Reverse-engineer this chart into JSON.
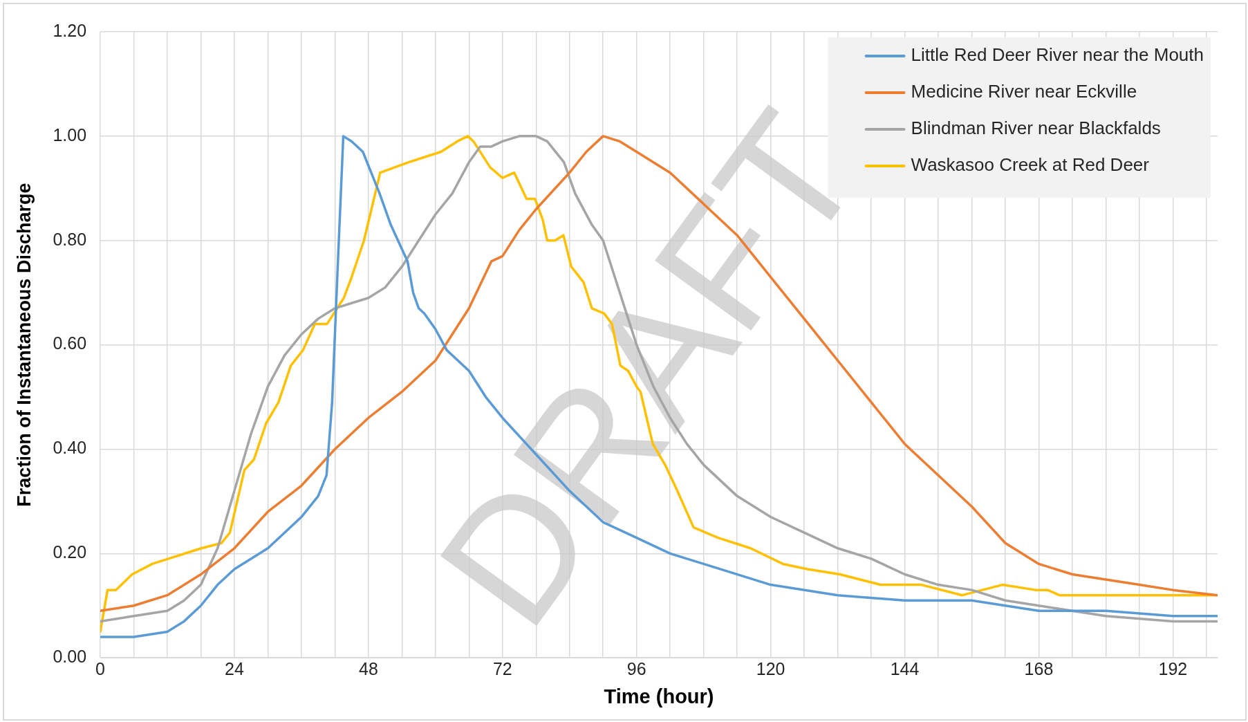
{
  "chart_data": {
    "type": "line",
    "xlabel": "Time (hour)",
    "ylabel": "Fraction of Instantaneous Discharge",
    "xlim": [
      0,
      200
    ],
    "ylim": [
      0,
      1.2
    ],
    "xticks": [
      0,
      {
        "value": 6,
        "label": null
      },
      {
        "value": 12,
        "label": null
      },
      {
        "value": 18,
        "label": null
      },
      24,
      {
        "value": 30,
        "label": null
      },
      {
        "value": 36,
        "label": null
      },
      {
        "value": 42,
        "label": null
      },
      48,
      {
        "value": 54,
        "label": null
      },
      {
        "value": 60,
        "label": null
      },
      {
        "value": 66,
        "label": null
      },
      72,
      {
        "value": 78,
        "label": null
      },
      {
        "value": 84,
        "label": null
      },
      {
        "value": 90,
        "label": null
      },
      96,
      {
        "value": 102,
        "label": null
      },
      {
        "value": 108,
        "label": null
      },
      {
        "value": 114,
        "label": null
      },
      120,
      {
        "value": 126,
        "label": null
      },
      {
        "value": 132,
        "label": null
      },
      {
        "value": 138,
        "label": null
      },
      144,
      {
        "value": 150,
        "label": null
      },
      {
        "value": 156,
        "label": null
      },
      {
        "value": 162,
        "label": null
      },
      168,
      {
        "value": 174,
        "label": null
      },
      {
        "value": 180,
        "label": null
      },
      {
        "value": 186,
        "label": null
      },
      192,
      {
        "value": 198,
        "label": null
      }
    ],
    "yticks": [
      {
        "value": 0,
        "label": "0.00"
      },
      {
        "value": 0.2,
        "label": "0.20"
      },
      {
        "value": 0.4,
        "label": "0.40"
      },
      {
        "value": 0.6,
        "label": "0.60"
      },
      {
        "value": 0.8,
        "label": "0.80"
      },
      {
        "value": 1,
        "label": "1.00"
      },
      {
        "value": 1.2,
        "label": "1.20"
      }
    ],
    "grid": true,
    "legend": "top right",
    "marker": "none",
    "line_style": "solid",
    "annotations": [
      "DRAFT"
    ],
    "series": [
      {
        "name": "Little Red Deer River near the Mouth",
        "color": "#5b9bd5",
        "x": [
          0,
          6,
          12,
          15,
          18,
          21,
          24,
          30,
          36,
          39,
          40.5,
          41.5,
          42.5,
          43.5,
          45,
          47,
          50,
          52,
          55,
          56,
          57,
          58,
          60,
          62,
          66,
          69,
          72,
          78,
          84,
          90,
          96,
          102,
          108,
          120,
          132,
          144,
          156,
          168,
          180,
          192,
          200
        ],
        "values": [
          0.04,
          0.04,
          0.05,
          0.07,
          0.1,
          0.14,
          0.17,
          0.21,
          0.27,
          0.31,
          0.35,
          0.49,
          0.75,
          1.0,
          0.99,
          0.97,
          0.89,
          0.83,
          0.76,
          0.7,
          0.67,
          0.66,
          0.63,
          0.59,
          0.55,
          0.5,
          0.46,
          0.39,
          0.32,
          0.26,
          0.23,
          0.2,
          0.18,
          0.14,
          0.12,
          0.11,
          0.11,
          0.09,
          0.09,
          0.08,
          0.08
        ]
      },
      {
        "name": "Medicine River near Eckville",
        "color": "#ed7d31",
        "x": [
          0,
          6,
          12,
          18,
          24,
          30,
          36,
          42,
          48,
          54,
          60,
          66,
          70,
          72,
          75,
          78,
          84,
          87,
          90,
          93,
          96,
          102,
          108,
          114,
          120,
          126,
          132,
          138,
          144,
          150,
          156,
          162,
          168,
          174,
          180,
          186,
          192,
          200
        ],
        "values": [
          0.09,
          0.1,
          0.12,
          0.16,
          0.21,
          0.28,
          0.33,
          0.4,
          0.46,
          0.51,
          0.57,
          0.67,
          0.76,
          0.77,
          0.82,
          0.86,
          0.93,
          0.97,
          1.0,
          0.99,
          0.97,
          0.93,
          0.87,
          0.81,
          0.73,
          0.65,
          0.57,
          0.49,
          0.41,
          0.35,
          0.29,
          0.22,
          0.18,
          0.16,
          0.15,
          0.14,
          0.13,
          0.12
        ]
      },
      {
        "name": "Blindman River near Blackfalds",
        "color": "#a5a5a5",
        "x": [
          0,
          6,
          12,
          15,
          18,
          21,
          24,
          27,
          30,
          33,
          36,
          39,
          42,
          45,
          48,
          51,
          54,
          57,
          60,
          63,
          66,
          68,
          70,
          72,
          75,
          78,
          80,
          83,
          85,
          88,
          90,
          93,
          96,
          99,
          102,
          105,
          108,
          114,
          120,
          126,
          132,
          138,
          144,
          150,
          156,
          162,
          168,
          180,
          192,
          200
        ],
        "values": [
          0.07,
          0.08,
          0.09,
          0.11,
          0.14,
          0.21,
          0.32,
          0.43,
          0.52,
          0.58,
          0.62,
          0.65,
          0.67,
          0.68,
          0.69,
          0.71,
          0.75,
          0.8,
          0.85,
          0.89,
          0.95,
          0.98,
          0.98,
          0.99,
          1.0,
          1.0,
          0.99,
          0.95,
          0.89,
          0.83,
          0.8,
          0.7,
          0.6,
          0.52,
          0.46,
          0.41,
          0.37,
          0.31,
          0.27,
          0.24,
          0.21,
          0.19,
          0.16,
          0.14,
          0.13,
          0.11,
          0.1,
          0.08,
          0.07,
          0.07
        ]
      },
      {
        "name": "Waskasoo Creek at Red Deer",
        "color": "#ffc000",
        "x": [
          0,
          1.3,
          2.8,
          5.7,
          9.3,
          12.2,
          18.1,
          21.7,
          23.2,
          25.8,
          27.5,
          29.7,
          31.9,
          34.1,
          36.3,
          38.4,
          40.6,
          43.6,
          45,
          47.2,
          50.1,
          55.2,
          58.1,
          61,
          63.9,
          65.8,
          66.8,
          69.8,
          72,
          74.1,
          76.3,
          77.8,
          79.2,
          80,
          81.4,
          82.9,
          84.3,
          86.5,
          88,
          90.2,
          91.6,
          93.1,
          94.5,
          96,
          96.7,
          98.9,
          101.1,
          103.3,
          106.2,
          110.6,
          116.4,
          122.2,
          126.6,
          132.4,
          139.7,
          147,
          154.3,
          161.5,
          167.4,
          169.6,
          171.7,
          176.1,
          183.4,
          192.1,
          199.6
        ],
        "values": [
          0.05,
          0.13,
          0.13,
          0.16,
          0.18,
          0.19,
          0.21,
          0.22,
          0.24,
          0.36,
          0.38,
          0.45,
          0.49,
          0.56,
          0.59,
          0.64,
          0.64,
          0.69,
          0.73,
          0.8,
          0.93,
          0.95,
          0.96,
          0.97,
          0.99,
          1.0,
          0.99,
          0.94,
          0.92,
          0.93,
          0.88,
          0.88,
          0.84,
          0.8,
          0.8,
          0.81,
          0.75,
          0.72,
          0.67,
          0.66,
          0.64,
          0.56,
          0.55,
          0.52,
          0.51,
          0.41,
          0.37,
          0.32,
          0.25,
          0.23,
          0.21,
          0.18,
          0.17,
          0.16,
          0.14,
          0.14,
          0.12,
          0.14,
          0.13,
          0.13,
          0.12,
          0.12,
          0.12,
          0.12,
          0.12
        ]
      }
    ]
  }
}
